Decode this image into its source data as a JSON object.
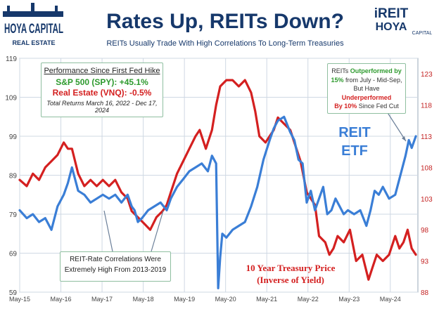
{
  "header": {
    "brand_left_line1": "HOYA CAPITAL",
    "brand_left_line2": "REAL ESTATE",
    "title": "Rates Up, REITs Down?",
    "subtitle": "REITs Usually Trade With High Correlations To Long-Term Treasuries",
    "brand_right_line1": "iREIT",
    "brand_right_line2": "HOYA",
    "brand_right_line3": "CAPITAL"
  },
  "performance_box": {
    "heading": "Performance Since First Fed Hike",
    "spy": "S&P 500 (SPY): +45.1%",
    "vnq": "Real Estate (VNQ): -0.5%",
    "note": "Total Returns March 16, 2022 - Dec 17, 2024"
  },
  "outperform_box": {
    "l1_a": "REITs ",
    "l1_b": "Outperformed by",
    "l2_a": "15%",
    "l2_b": " from July - Mid-Sep,",
    "l3_a": "But Have ",
    "l3_b": "Underperformed",
    "l4_a": "By 10%",
    "l4_b": " Since Fed Cut"
  },
  "correlation_box": {
    "line1": "REIT-Rate Correlations Were",
    "line2": "Extremely High From 2013-2019"
  },
  "labels": {
    "reit_etf_line1": "REIT",
    "reit_etf_line2": "ETF",
    "treasury_line1": "10 Year Treasury Price",
    "treasury_line2": "(Inverse of Yield)"
  },
  "colors": {
    "reit": "#3a7ed6",
    "treasury": "#d42020",
    "title": "#16386b",
    "grid": "#cfd8e3"
  },
  "chart_data": {
    "type": "line",
    "x_ticks": [
      "May-15",
      "May-16",
      "May-17",
      "May-18",
      "May-19",
      "May-20",
      "May-21",
      "May-22",
      "May-23",
      "May-24"
    ],
    "y_left": {
      "ticks": [
        59,
        69,
        79,
        89,
        99,
        109,
        119
      ],
      "range": [
        59,
        119
      ]
    },
    "y_right": {
      "ticks": [
        88,
        93,
        98,
        103,
        108,
        113,
        118,
        123
      ],
      "range": [
        88,
        125.5
      ]
    },
    "grid": true,
    "series": [
      {
        "name": "REIT ETF",
        "axis": "left",
        "x": [
          2015.33,
          2015.5,
          2015.65,
          2015.8,
          2015.95,
          2016.1,
          2016.25,
          2016.4,
          2016.5,
          2016.6,
          2016.75,
          2016.9,
          2017.05,
          2017.2,
          2017.35,
          2017.5,
          2017.65,
          2017.8,
          2017.95,
          2018.05,
          2018.12,
          2018.2,
          2018.3,
          2018.45,
          2018.6,
          2018.75,
          2018.9,
          2019.0,
          2019.15,
          2019.3,
          2019.45,
          2019.6,
          2019.75,
          2019.9,
          2020.0,
          2020.1,
          2020.15,
          2020.2,
          2020.25,
          2020.35,
          2020.5,
          2020.65,
          2020.8,
          2020.95,
          2021.1,
          2021.25,
          2021.4,
          2021.5,
          2021.6,
          2021.75,
          2021.9,
          2022.0,
          2022.1,
          2022.2,
          2022.3,
          2022.4,
          2022.5,
          2022.6,
          2022.7,
          2022.8,
          2022.9,
          2023.0,
          2023.1,
          2023.2,
          2023.3,
          2023.45,
          2023.6,
          2023.75,
          2023.85,
          2023.95,
          2024.05,
          2024.15,
          2024.3,
          2024.45,
          2024.6,
          2024.7,
          2024.78,
          2024.85,
          2024.95
        ],
        "y": [
          80,
          78,
          79,
          77,
          78,
          75,
          81,
          84,
          87,
          91,
          85,
          84,
          82,
          83,
          84,
          83,
          84,
          82,
          84,
          81,
          80,
          77,
          78,
          80,
          81,
          82,
          80,
          83,
          86,
          88,
          90,
          91,
          92,
          90,
          94,
          92,
          60,
          68,
          74,
          73,
          75,
          76,
          77,
          81,
          86,
          93,
          98,
          101,
          103,
          104,
          100,
          98,
          93,
          92,
          82,
          85,
          80,
          83,
          86,
          79,
          80,
          83,
          81,
          79,
          80,
          79,
          80,
          76,
          80,
          85,
          84,
          86,
          83,
          84,
          90,
          94,
          98,
          96,
          99
        ]
      },
      {
        "name": "10 Year Treasury Price",
        "axis": "right",
        "x": [
          2015.33,
          2015.5,
          2015.65,
          2015.8,
          2015.95,
          2016.1,
          2016.25,
          2016.4,
          2016.5,
          2016.6,
          2016.75,
          2016.9,
          2017.05,
          2017.2,
          2017.35,
          2017.5,
          2017.65,
          2017.8,
          2017.95,
          2018.05,
          2018.2,
          2018.35,
          2018.5,
          2018.65,
          2018.8,
          2018.9,
          2019.0,
          2019.15,
          2019.3,
          2019.45,
          2019.6,
          2019.7,
          2019.85,
          2020.0,
          2020.1,
          2020.2,
          2020.35,
          2020.5,
          2020.65,
          2020.8,
          2020.95,
          2021.05,
          2021.15,
          2021.3,
          2021.5,
          2021.6,
          2021.75,
          2021.9,
          2022.0,
          2022.15,
          2022.3,
          2022.4,
          2022.5,
          2022.6,
          2022.75,
          2022.85,
          2022.95,
          2023.05,
          2023.2,
          2023.35,
          2023.5,
          2023.65,
          2023.8,
          2023.9,
          2024.0,
          2024.15,
          2024.3,
          2024.45,
          2024.55,
          2024.65,
          2024.75,
          2024.85,
          2024.95
        ],
        "y": [
          106,
          105,
          107,
          106,
          108,
          109,
          110,
          112,
          111,
          111,
          107,
          105,
          106,
          105,
          106,
          105,
          106,
          104,
          103,
          101,
          100,
          99,
          98,
          100,
          101,
          102,
          104,
          107,
          109,
          111,
          113,
          114,
          111,
          114,
          118,
          121,
          122,
          122,
          121,
          122,
          120,
          117,
          113,
          112,
          114,
          116,
          115,
          114,
          112,
          109,
          104,
          103,
          102,
          97,
          96,
          94,
          95,
          97,
          96,
          98,
          93,
          94,
          90,
          92,
          94,
          93,
          94,
          97,
          95,
          96,
          98,
          95,
          94
        ]
      }
    ]
  }
}
